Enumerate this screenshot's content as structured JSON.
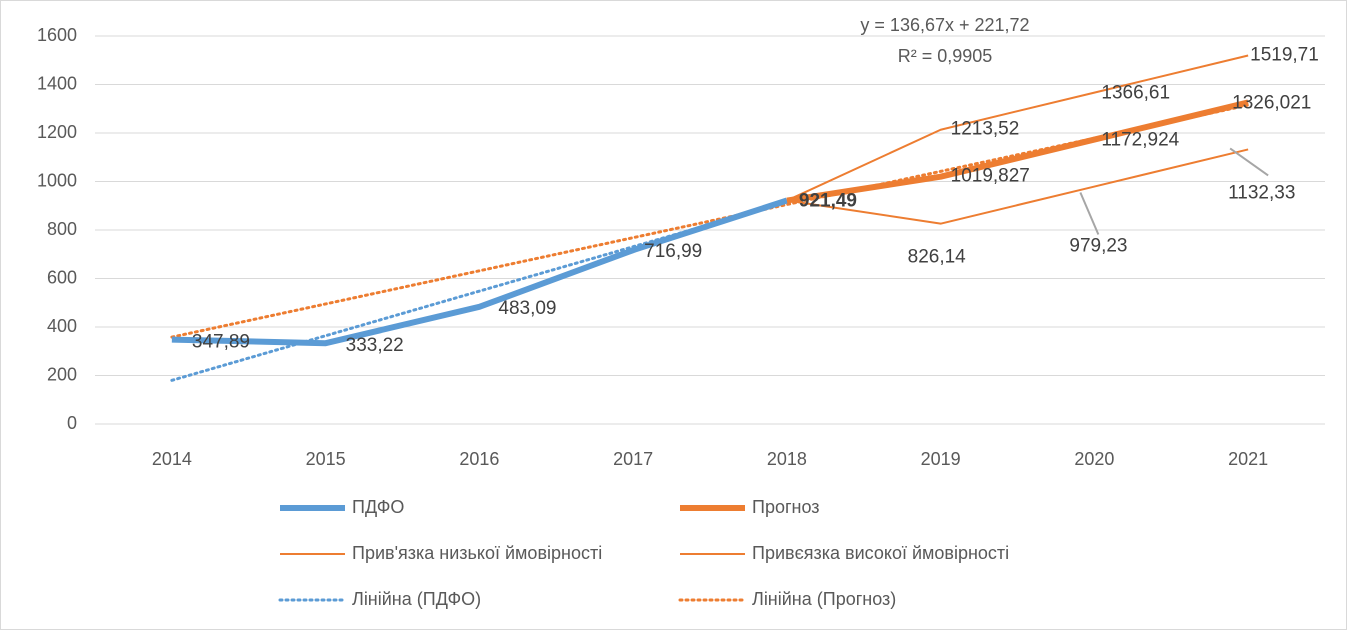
{
  "chart_data": {
    "type": "line",
    "categories": [
      "2014",
      "2015",
      "2016",
      "2017",
      "2018",
      "2019",
      "2020",
      "2021"
    ],
    "series": [
      {
        "name": "ПДФО",
        "color": "#5b9bd5",
        "values": [
          347.89,
          333.22,
          483.09,
          716.99,
          921.49,
          null,
          null,
          null
        ],
        "value_labels": [
          "347,89",
          "333,22",
          "483,09",
          "716,99",
          null,
          null,
          null,
          null
        ]
      },
      {
        "name": "Прогноз",
        "color": "#ed7d31",
        "values": [
          null,
          null,
          null,
          null,
          921.49,
          1019.827,
          1172.924,
          1326.021
        ],
        "value_labels": [
          null,
          null,
          null,
          null,
          "921,49",
          "1019,827",
          "1172,924",
          "1326,021"
        ]
      },
      {
        "name": "Прив'язка низької ймовірності",
        "color": "#ed7d31",
        "values": [
          null,
          null,
          null,
          null,
          921.49,
          826.14,
          979.23,
          1132.33
        ],
        "value_labels": [
          null,
          null,
          null,
          null,
          null,
          "826,14",
          "979,23",
          "1132,33"
        ]
      },
      {
        "name": "Привєязка високої ймовірності",
        "color": "#ed7d31",
        "values": [
          null,
          null,
          null,
          null,
          921.49,
          1213.52,
          1366.61,
          1519.71
        ],
        "value_labels": [
          null,
          null,
          null,
          null,
          null,
          "1213,52",
          "1366,61",
          "1519,71"
        ]
      },
      {
        "name": "Лінійна (ПДФО)",
        "color": "#5b9bd5",
        "values": [
          180,
          364,
          548,
          731,
          915,
          null,
          null,
          null
        ]
      },
      {
        "name": "Лінійна (Прогноз)",
        "color": "#ed7d31",
        "values": [
          358.39,
          495.06,
          631.73,
          768.4,
          905.07,
          1041.74,
          1178.41,
          1315.08
        ]
      }
    ],
    "annotations": [
      "y = 136,67x + 221,72",
      "R² = 0,9905"
    ],
    "ylim": [
      0,
      1600
    ],
    "yticks": [
      0,
      200,
      400,
      600,
      800,
      1000,
      1200,
      1400,
      1600
    ],
    "grid": true,
    "legend": "bottom"
  }
}
